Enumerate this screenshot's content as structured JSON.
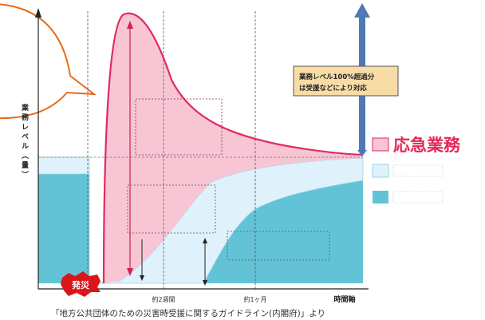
{
  "axes": {
    "y_label": "業務レベル（量）",
    "x_label": "時間軸",
    "x_ticks": [
      "約2週間",
      "約1ヶ月"
    ]
  },
  "onset_badge": "発災",
  "callout_box": {
    "line1": "業務レベル100%超過分",
    "line2": "は受援などにより対応"
  },
  "legend": [
    {
      "label": "応急業務",
      "color": "#f7c5d4"
    },
    {
      "label": "",
      "color": "#dff1fa"
    },
    {
      "label": "",
      "color": "#63c3d6"
    }
  ],
  "colors": {
    "emergency": "#f7c5d4",
    "emergency_stroke": "#e22a5e",
    "priority": "#dff1fa",
    "regular": "#63c3d6",
    "arrow_blue": "#4f79b6",
    "arrow_pink": "#d21f55",
    "bubble": "#ffffff",
    "bubble_stroke": "#e86a1a",
    "badge": "#d9161c"
  },
  "caption": "「地方公共団体のための災害時受援に関するガイドライン(内閣府)」より"
}
